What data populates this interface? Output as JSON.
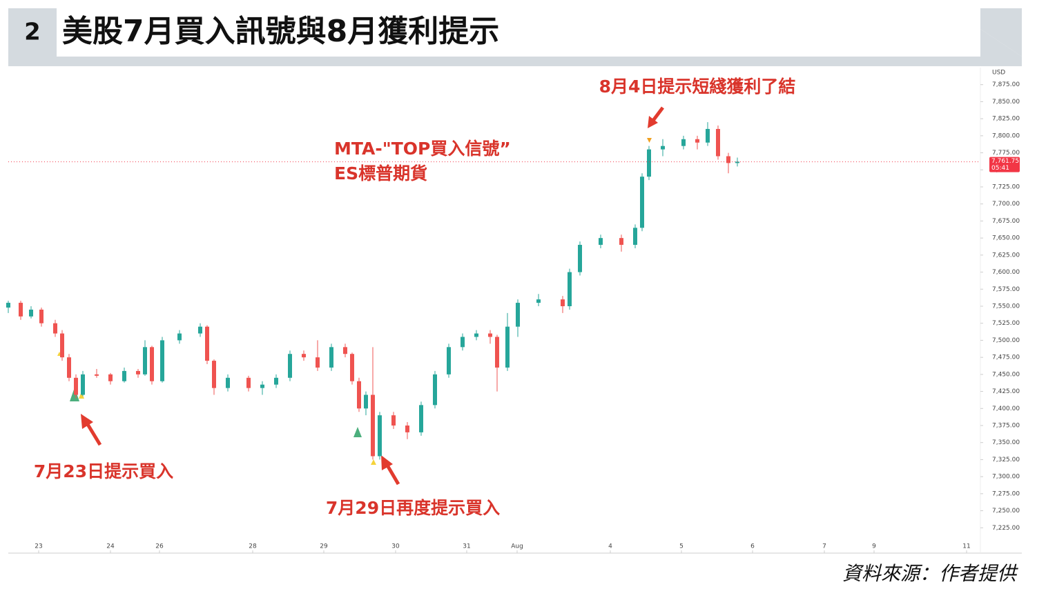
{
  "chart_data": {
    "type": "candlestick",
    "figure_number": "2",
    "title": "美股7月買入訊號與8月獲利提示",
    "currency": "USD",
    "source": "資料來源：作者提供",
    "annotations": [
      "8月4日提示短綫獲利了結",
      "MTA-\"TOP買入信號”",
      "ES標普期貨",
      "7月23日提示買入",
      "7月29日再度提示買入"
    ],
    "up_color": "#26a69a",
    "down_color": "#ef5350",
    "x": [
      0,
      18,
      33,
      48,
      68,
      78,
      88,
      98,
      108,
      128,
      148,
      168,
      188,
      198,
      208,
      223,
      248,
      278,
      288,
      298,
      318,
      348,
      368,
      388,
      408,
      428,
      448,
      468,
      488,
      498,
      508,
      518,
      528,
      538,
      558,
      578,
      598,
      618,
      638,
      658,
      678,
      698,
      708,
      723,
      738,
      768,
      803,
      813,
      828,
      858,
      888,
      908,
      918,
      928,
      948,
      978,
      998,
      1013,
      1028,
      1043,
      1056
    ],
    "open": [
      7548,
      7555,
      7535,
      7545,
      7525,
      7510,
      7475,
      7445,
      7420,
      7450,
      7450,
      7440,
      7455,
      7450,
      7490,
      7440,
      7500,
      7510,
      7520,
      7470,
      7430,
      7445,
      7430,
      7435,
      7445,
      7480,
      7475,
      7460,
      7490,
      7480,
      7440,
      7400,
      7420,
      7330,
      7390,
      7375,
      7365,
      7405,
      7450,
      7490,
      7505,
      7510,
      7505,
      7460,
      7520,
      7555,
      7560,
      7550,
      7600,
      7640,
      7650,
      7640,
      7665,
      7740,
      7780,
      7785,
      7795,
      7790,
      7810,
      7770,
      7760
    ],
    "high": [
      7558,
      7558,
      7550,
      7548,
      7530,
      7515,
      7480,
      7450,
      7455,
      7458,
      7452,
      7460,
      7458,
      7500,
      7492,
      7505,
      7515,
      7525,
      7522,
      7472,
      7450,
      7448,
      7440,
      7450,
      7485,
      7485,
      7500,
      7495,
      7495,
      7482,
      7445,
      7425,
      7490,
      7395,
      7395,
      7380,
      7410,
      7455,
      7495,
      7510,
      7515,
      7515,
      7508,
      7540,
      7560,
      7568,
      7565,
      7605,
      7645,
      7655,
      7655,
      7670,
      7745,
      7785,
      7795,
      7800,
      7800,
      7820,
      7815,
      7775,
      7768
    ],
    "low": [
      7540,
      7530,
      7532,
      7520,
      7505,
      7470,
      7440,
      7415,
      7418,
      7445,
      7435,
      7438,
      7445,
      7448,
      7435,
      7438,
      7495,
      7505,
      7465,
      7420,
      7425,
      7425,
      7420,
      7430,
      7440,
      7470,
      7455,
      7455,
      7475,
      7435,
      7395,
      7390,
      7325,
      7325,
      7370,
      7355,
      7360,
      7400,
      7445,
      7485,
      7500,
      7495,
      7425,
      7455,
      7505,
      7550,
      7540,
      7545,
      7595,
      7635,
      7630,
      7635,
      7660,
      7735,
      7770,
      7780,
      7780,
      7785,
      7765,
      7745,
      7755
    ],
    "close": [
      7555,
      7535,
      7545,
      7525,
      7510,
      7475,
      7445,
      7420,
      7450,
      7448,
      7440,
      7455,
      7450,
      7490,
      7440,
      7500,
      7510,
      7520,
      7470,
      7430,
      7445,
      7430,
      7435,
      7445,
      7480,
      7475,
      7460,
      7490,
      7480,
      7440,
      7400,
      7420,
      7330,
      7390,
      7375,
      7365,
      7405,
      7450,
      7490,
      7505,
      7510,
      7505,
      7460,
      7520,
      7555,
      7560,
      7550,
      7600,
      7640,
      7650,
      7640,
      7665,
      7740,
      7780,
      7785,
      7795,
      7790,
      7810,
      7770,
      7760,
      7762
    ],
    "last_price": {
      "value": 7761.75,
      "label": "7,761.75"
    },
    "last_price_time": "05:41",
    "xlim": [
      0,
      1408
    ],
    "xticks": [
      {
        "value": 44,
        "label": "23"
      },
      {
        "value": 148,
        "label": "24"
      },
      {
        "value": 219,
        "label": "26"
      },
      {
        "value": 354,
        "label": "28"
      },
      {
        "value": 457,
        "label": "29"
      },
      {
        "value": 561,
        "label": "30"
      },
      {
        "value": 664,
        "label": "31"
      },
      {
        "value": 737,
        "label": "Aug"
      },
      {
        "value": 872,
        "label": "4"
      },
      {
        "value": 975,
        "label": "5"
      },
      {
        "value": 1078,
        "label": "6"
      },
      {
        "value": 1182,
        "label": "7"
      },
      {
        "value": 1254,
        "label": "9"
      },
      {
        "value": 1388,
        "label": "11"
      }
    ],
    "ylim": [
      7200,
      7900
    ],
    "yticks": [
      {
        "value": 7225,
        "label": "7,225.00"
      },
      {
        "value": 7250,
        "label": "7,250.00"
      },
      {
        "value": 7275,
        "label": "7,275.00"
      },
      {
        "value": 7300,
        "label": "7,300.00"
      },
      {
        "value": 7325,
        "label": "7,325.00"
      },
      {
        "value": 7350,
        "label": "7,350.00"
      },
      {
        "value": 7375,
        "label": "7,375.00"
      },
      {
        "value": 7400,
        "label": "7,400.00"
      },
      {
        "value": 7425,
        "label": "7,425.00"
      },
      {
        "value": 7450,
        "label": "7,450.00"
      },
      {
        "value": 7475,
        "label": "7,475.00"
      },
      {
        "value": 7500,
        "label": "7,500.00"
      },
      {
        "value": 7525,
        "label": "7,525.00"
      },
      {
        "value": 7550,
        "label": "7,550.00"
      },
      {
        "value": 7575,
        "label": "7,575.00"
      },
      {
        "value": 7600,
        "label": "7,600.00"
      },
      {
        "value": 7625,
        "label": "7,625.00"
      },
      {
        "value": 7650,
        "label": "7,650.00"
      },
      {
        "value": 7675,
        "label": "7,675.00"
      },
      {
        "value": 7700,
        "label": "7,700.00"
      },
      {
        "value": 7725,
        "label": "7,725.00"
      },
      {
        "value": 7750,
        "label": "7,750.00"
      },
      {
        "value": 7775,
        "label": "7,775.00"
      },
      {
        "value": 7800,
        "label": "7,800.00"
      },
      {
        "value": 7825,
        "label": "7,825.00"
      },
      {
        "value": 7850,
        "label": "7,850.00"
      },
      {
        "value": 7875,
        "label": "7,875.00"
      }
    ]
  }
}
